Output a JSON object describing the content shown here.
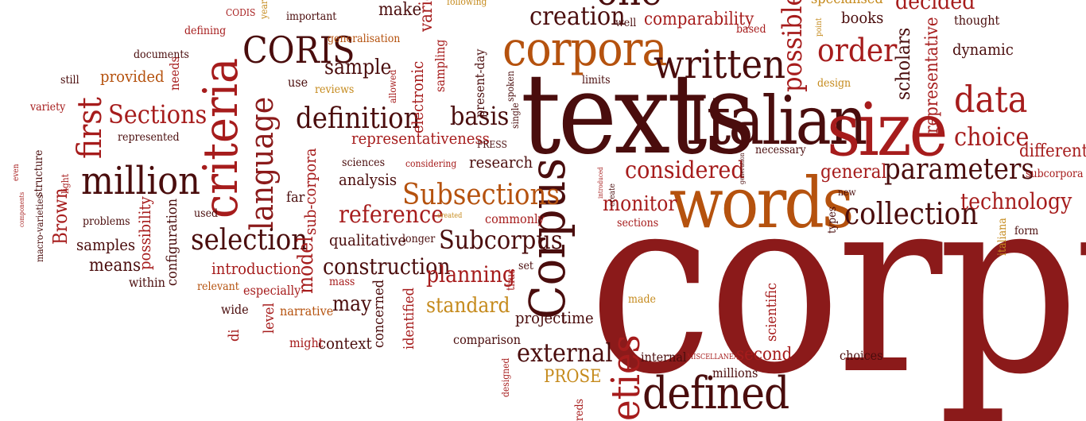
{
  "palette": {
    "dark": "#4a0d0d",
    "red": "#8b1a1a",
    "crimson": "#a61c1c",
    "orange": "#b5520e",
    "gold": "#c58a1c",
    "brown": "#5c1a10"
  },
  "words": [
    {
      "text": "corpus",
      "color": "red"
    },
    {
      "text": "texts",
      "color": "dark"
    },
    {
      "text": "Italian",
      "color": "dark"
    },
    {
      "text": "size",
      "color": "crimson"
    },
    {
      "text": "words",
      "color": "orange"
    },
    {
      "text": "Corpus",
      "color": "dark"
    },
    {
      "text": "defined",
      "color": "dark"
    },
    {
      "text": "corpora",
      "color": "orange"
    },
    {
      "text": "written",
      "color": "dark"
    },
    {
      "text": "criteria",
      "color": "crimson"
    },
    {
      "text": "million",
      "color": "dark"
    },
    {
      "text": "language",
      "color": "red"
    },
    {
      "text": "CORIS",
      "color": "dark"
    },
    {
      "text": "first",
      "color": "crimson"
    },
    {
      "text": "order",
      "color": "crimson"
    },
    {
      "text": "data",
      "color": "crimson"
    },
    {
      "text": "possible",
      "color": "crimson"
    },
    {
      "text": "selection",
      "color": "dark"
    },
    {
      "text": "collection",
      "color": "dark"
    },
    {
      "text": "parameters",
      "color": "dark"
    },
    {
      "text": "Subsections",
      "color": "orange"
    },
    {
      "text": "creation",
      "color": "dark"
    },
    {
      "text": "definition",
      "color": "dark"
    },
    {
      "text": "Subcorpus",
      "color": "dark"
    },
    {
      "text": "considered",
      "color": "crimson"
    },
    {
      "text": "external",
      "color": "dark"
    },
    {
      "text": "reference",
      "color": "crimson"
    },
    {
      "text": "basis",
      "color": "dark"
    },
    {
      "text": "choice",
      "color": "crimson"
    },
    {
      "text": "Sections",
      "color": "crimson"
    },
    {
      "text": "construction",
      "color": "dark"
    },
    {
      "text": "planning",
      "color": "crimson"
    },
    {
      "text": "technology",
      "color": "crimson"
    },
    {
      "text": "monitor",
      "color": "crimson"
    },
    {
      "text": "general",
      "color": "crimson"
    },
    {
      "text": "different",
      "color": "crimson"
    },
    {
      "text": "comparability",
      "color": "crimson"
    },
    {
      "text": "sample",
      "color": "dark"
    },
    {
      "text": "standard",
      "color": "gold"
    },
    {
      "text": "may",
      "color": "dark"
    },
    {
      "text": "model",
      "color": "crimson"
    },
    {
      "text": "sub-corpora",
      "color": "crimson"
    },
    {
      "text": "representative",
      "color": "crimson"
    },
    {
      "text": "scholars",
      "color": "dark"
    },
    {
      "text": "introduction",
      "color": "crimson"
    },
    {
      "text": "second",
      "color": "crimson"
    },
    {
      "text": "context",
      "color": "dark"
    },
    {
      "text": "qualitative",
      "color": "dark"
    },
    {
      "text": "Brown",
      "color": "crimson"
    },
    {
      "text": "project",
      "color": "dark"
    },
    {
      "text": "time",
      "color": "dark"
    },
    {
      "text": "means",
      "color": "dark"
    },
    {
      "text": "representativeness",
      "color": "crimson"
    },
    {
      "text": "research",
      "color": "dark"
    },
    {
      "text": "analysis",
      "color": "dark"
    },
    {
      "text": "samples",
      "color": "dark"
    },
    {
      "text": "provided",
      "color": "orange"
    },
    {
      "text": "electronic",
      "color": "crimson"
    },
    {
      "text": "make",
      "color": "dark"
    },
    {
      "text": "possibility",
      "color": "crimson"
    },
    {
      "text": "configuration",
      "color": "dark"
    },
    {
      "text": "PROSE",
      "color": "gold"
    },
    {
      "text": "eties",
      "color": "crimson"
    },
    {
      "text": "one",
      "color": "dark"
    },
    {
      "text": "books",
      "color": "dark"
    },
    {
      "text": "dynamic",
      "color": "dark"
    },
    {
      "text": "identified",
      "color": "crimson"
    },
    {
      "text": "comparison",
      "color": "dark"
    },
    {
      "text": "internal",
      "color": "dark"
    },
    {
      "text": "millions",
      "color": "dark"
    },
    {
      "text": "choices",
      "color": "dark"
    },
    {
      "text": "scientific",
      "color": "crimson"
    },
    {
      "text": "MISCELLANEA",
      "color": "crimson"
    },
    {
      "text": "made",
      "color": "gold"
    },
    {
      "text": "concerned",
      "color": "dark"
    },
    {
      "text": "might",
      "color": "crimson"
    },
    {
      "text": "level",
      "color": "crimson"
    },
    {
      "text": "narrative",
      "color": "orange"
    },
    {
      "text": "wide",
      "color": "dark"
    },
    {
      "text": "di",
      "color": "crimson"
    },
    {
      "text": "relevant",
      "color": "orange"
    },
    {
      "text": "especially",
      "color": "crimson"
    },
    {
      "text": "within",
      "color": "dark"
    },
    {
      "text": "mass",
      "color": "crimson"
    },
    {
      "text": "set",
      "color": "dark"
    },
    {
      "text": "thus",
      "color": "crimson"
    },
    {
      "text": "commonly",
      "color": "crimson"
    },
    {
      "text": "created",
      "color": "gold"
    },
    {
      "text": "longer",
      "color": "dark"
    },
    {
      "text": "sections",
      "color": "crimson"
    },
    {
      "text": "create",
      "color": "dark"
    },
    {
      "text": "types",
      "color": "dark"
    },
    {
      "text": "new",
      "color": "dark"
    },
    {
      "text": "form",
      "color": "dark"
    },
    {
      "text": "italiana",
      "color": "gold"
    },
    {
      "text": "subcorpora",
      "color": "crimson"
    },
    {
      "text": "necessary",
      "color": "dark"
    },
    {
      "text": "generation",
      "color": "dark"
    },
    {
      "text": "introduced",
      "color": "crimson"
    },
    {
      "text": "far",
      "color": "dark"
    },
    {
      "text": "used",
      "color": "dark"
    },
    {
      "text": "problems",
      "color": "dark"
    },
    {
      "text": "macro-varieties",
      "color": "dark"
    },
    {
      "text": "components",
      "color": "crimson"
    },
    {
      "text": "even",
      "color": "crimson"
    },
    {
      "text": "structure",
      "color": "dark"
    },
    {
      "text": "light",
      "color": "crimson"
    },
    {
      "text": "represented",
      "color": "dark"
    },
    {
      "text": "variety",
      "color": "crimson"
    },
    {
      "text": "still",
      "color": "dark"
    },
    {
      "text": "documents",
      "color": "dark"
    },
    {
      "text": "defining",
      "color": "crimson"
    },
    {
      "text": "needs",
      "color": "crimson"
    },
    {
      "text": "use",
      "color": "dark"
    },
    {
      "text": "reviews",
      "color": "gold"
    },
    {
      "text": "allowed",
      "color": "crimson"
    },
    {
      "text": "sampling",
      "color": "crimson"
    },
    {
      "text": "present-day",
      "color": "dark"
    },
    {
      "text": "spoken",
      "color": "dark"
    },
    {
      "text": "single",
      "color": "dark"
    },
    {
      "text": "PRESS",
      "color": "dark"
    },
    {
      "text": "sciences",
      "color": "dark"
    },
    {
      "text": "considering",
      "color": "crimson"
    },
    {
      "text": "limits",
      "color": "dark"
    },
    {
      "text": "well",
      "color": "dark"
    },
    {
      "text": "based",
      "color": "crimson"
    },
    {
      "text": "point",
      "color": "gold"
    },
    {
      "text": "design",
      "color": "gold"
    },
    {
      "text": "thought",
      "color": "dark"
    },
    {
      "text": "CODIS",
      "color": "crimson"
    },
    {
      "text": "years",
      "color": "gold"
    },
    {
      "text": "important",
      "color": "dark"
    },
    {
      "text": "generalisation",
      "color": "orange"
    },
    {
      "text": "following",
      "color": "gold"
    },
    {
      "text": "variety",
      "color": "crimson"
    },
    {
      "text": "decided",
      "color": "crimson"
    },
    {
      "text": "specialised",
      "color": "gold"
    },
    {
      "text": "designed",
      "color": "crimson"
    },
    {
      "text": "reds",
      "color": "crimson"
    }
  ]
}
